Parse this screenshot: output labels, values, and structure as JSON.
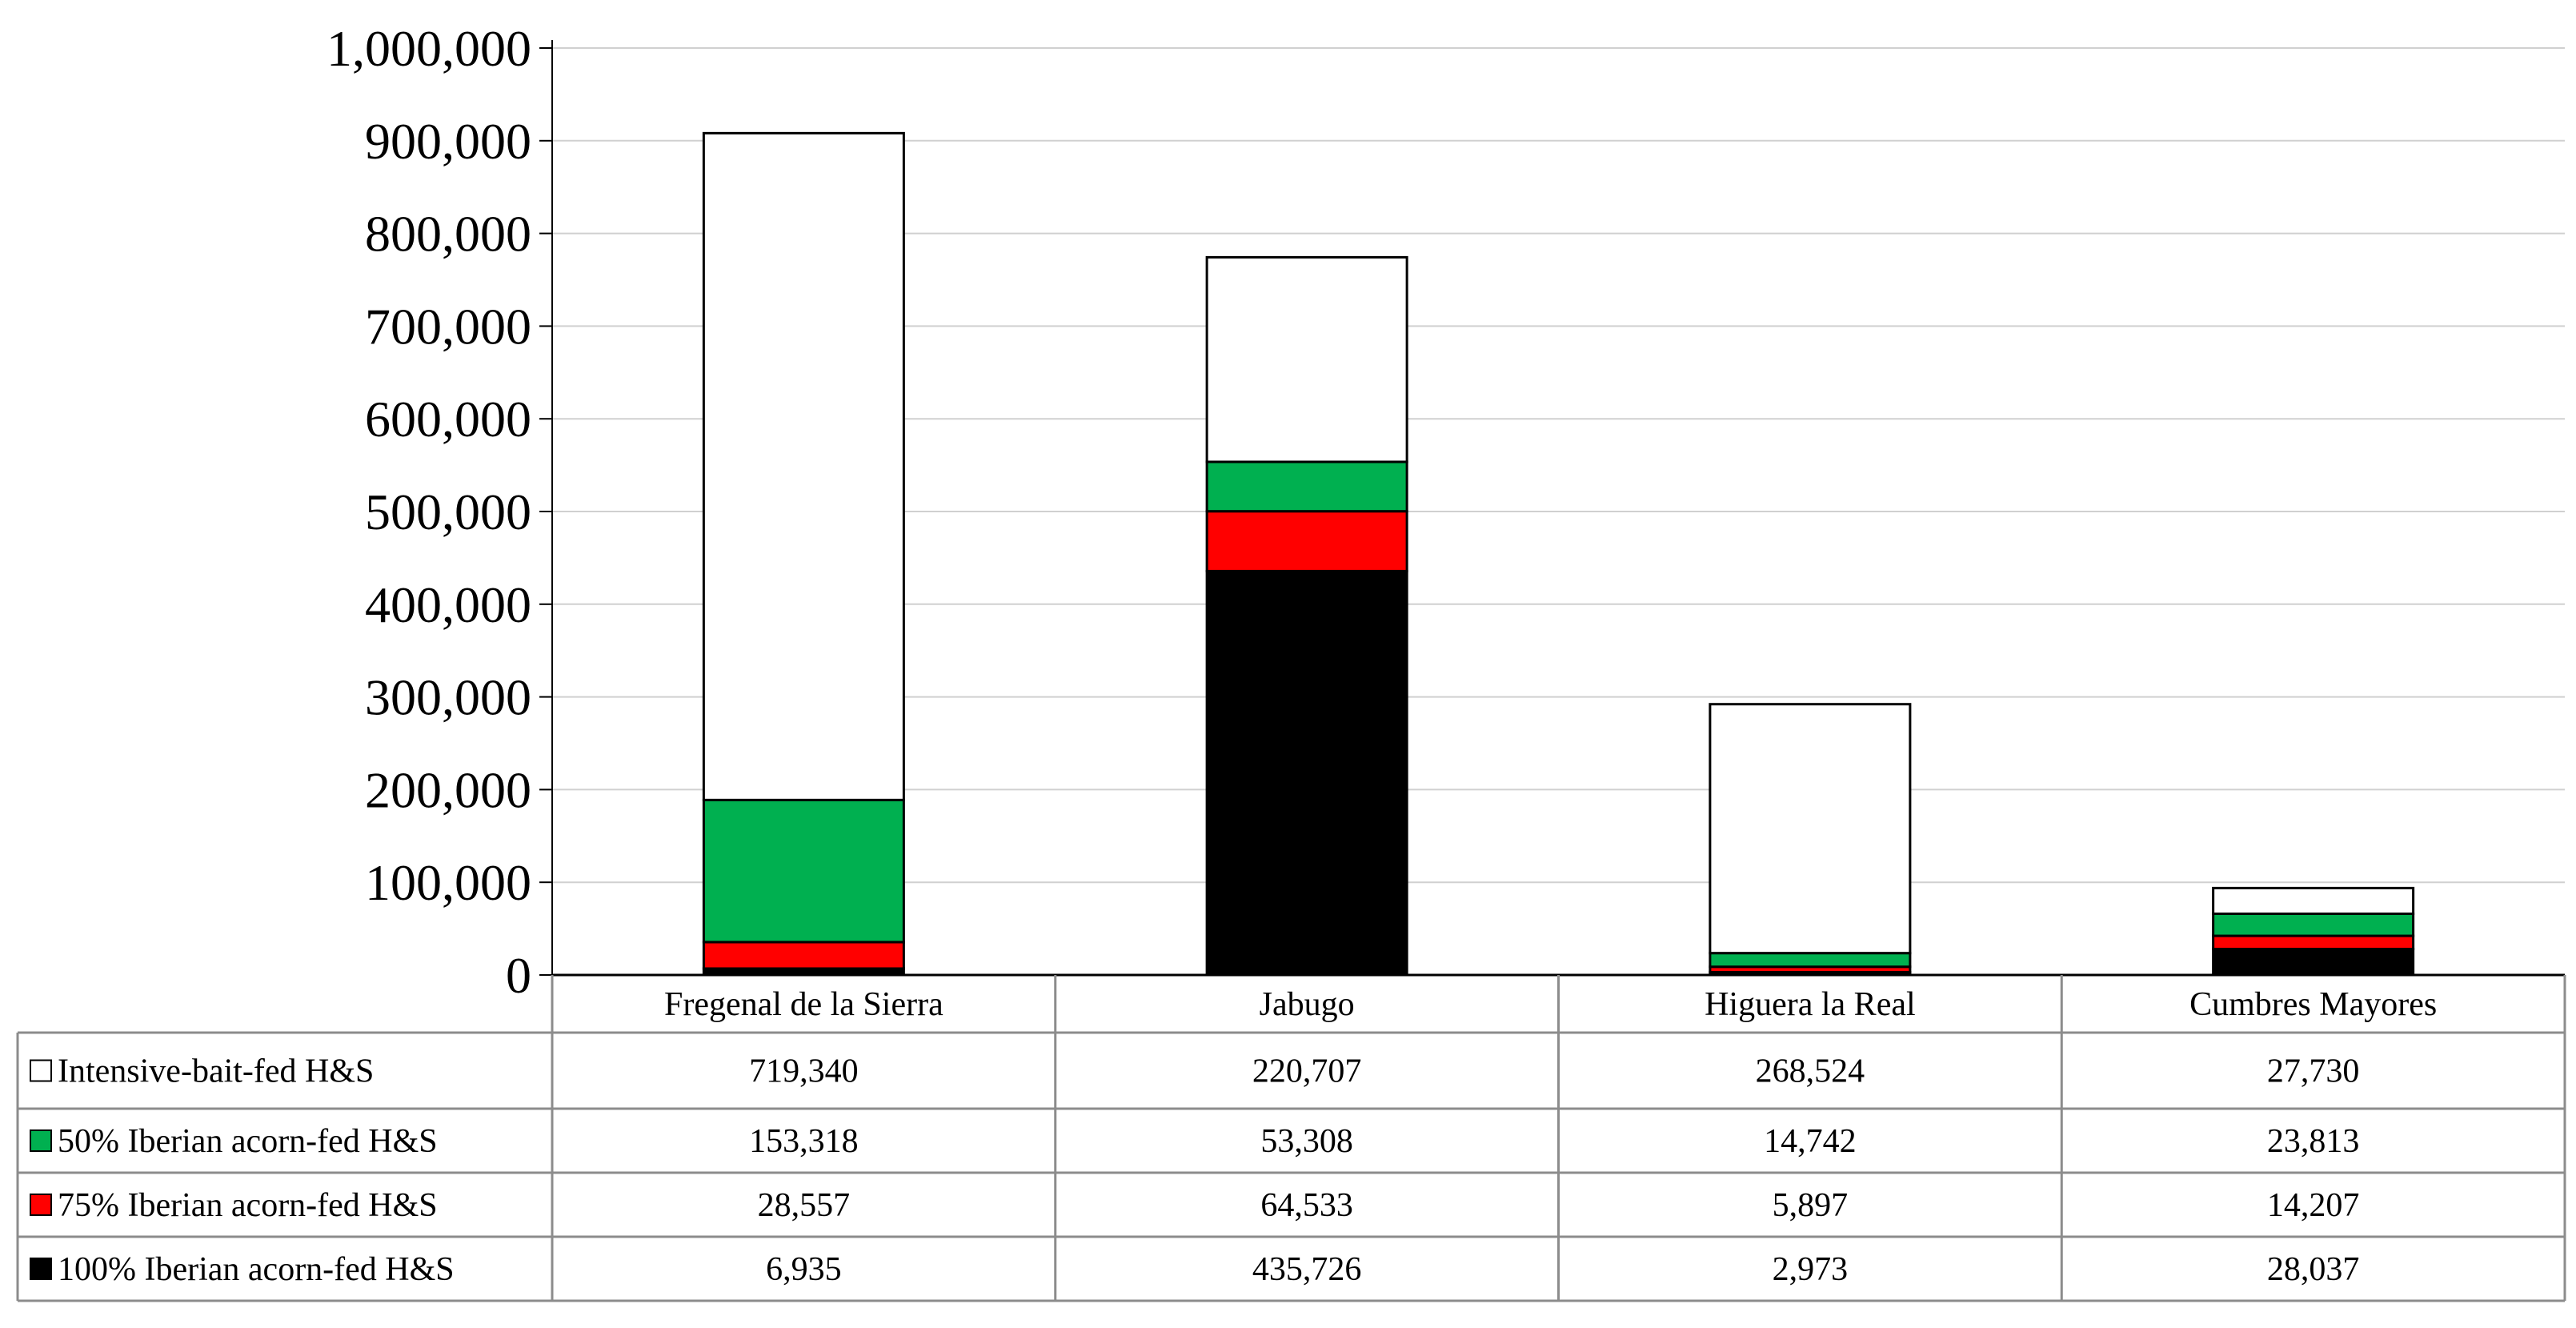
{
  "chart_data": {
    "type": "bar",
    "stacked": true,
    "categories": [
      "Fregenal de la Sierra",
      "Jabugo",
      "Higuera la Real",
      "Cumbres Mayores"
    ],
    "ylim": [
      0,
      1000000
    ],
    "yticks": [
      "0",
      "100,000",
      "200,000",
      "300,000",
      "400,000",
      "500,000",
      "600,000",
      "700,000",
      "800,000",
      "900,000",
      "1,000,000"
    ],
    "grid": true,
    "legend": "data-table-rows",
    "series": [
      {
        "name": "100% Iberian acorn-fed H&S",
        "color": "#000000",
        "values": [
          6935,
          435726,
          2973,
          28037
        ],
        "labels": [
          "6,935",
          "435,726",
          "2,973",
          "28,037"
        ]
      },
      {
        "name": "75% Iberian acorn-fed H&S",
        "color": "#ff0000",
        "values": [
          28557,
          64533,
          5897,
          14207
        ],
        "labels": [
          "28,557",
          "64,533",
          "5,897",
          "14,207"
        ]
      },
      {
        "name": "50% Iberian acorn-fed H&S",
        "color": "#00b050",
        "values": [
          153318,
          53308,
          14742,
          23813
        ],
        "labels": [
          "153,318",
          "53,308",
          "14,742",
          "23,813"
        ]
      },
      {
        "name": "Intensive-bait-fed H&S",
        "color": "#ffffff",
        "values": [
          719340,
          220707,
          268524,
          27730
        ],
        "labels": [
          "719,340",
          "220,707",
          "268,524",
          "27,730"
        ]
      }
    ],
    "table_row_order": [
      "Intensive-bait-fed H&S",
      "50% Iberian acorn-fed H&S",
      "75% Iberian acorn-fed H&S",
      "100% Iberian acorn-fed H&S"
    ]
  }
}
